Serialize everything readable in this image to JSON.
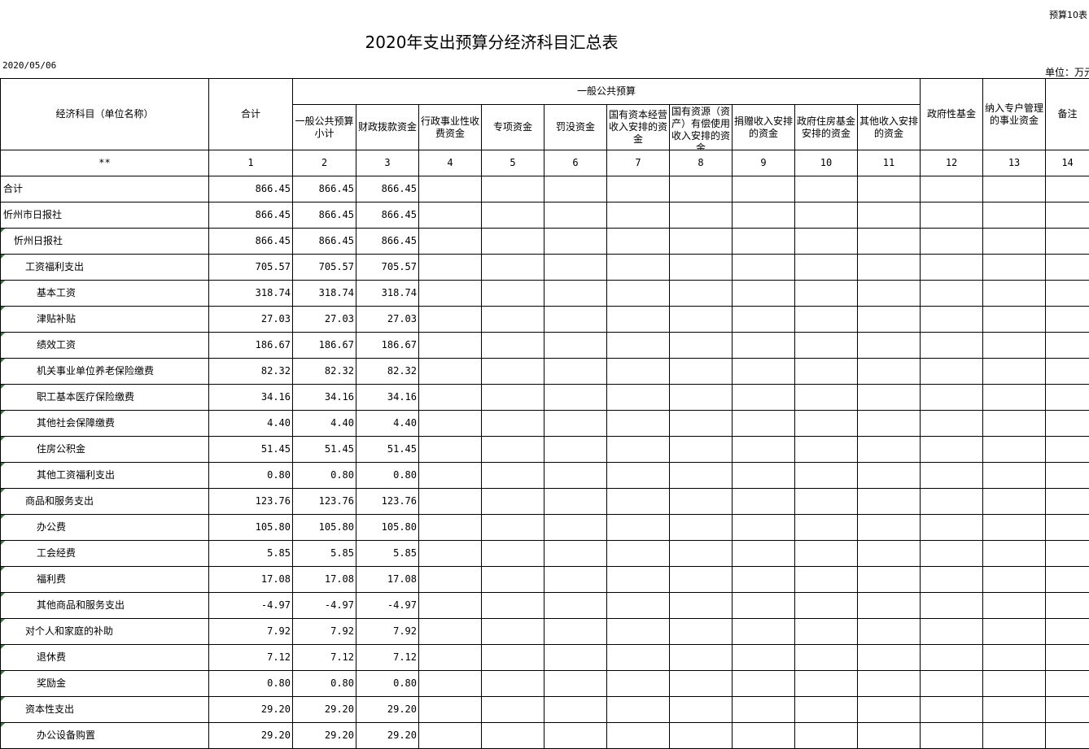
{
  "form_no": "预算10表",
  "title": "2020年支出预算分经济科目汇总表",
  "date": "2020/05/06",
  "unit": "单位：万元",
  "colors": {
    "marker": "#1f8a1f",
    "border": "#000000"
  },
  "header": {
    "name": "经济科目（单位名称）",
    "total": "合计",
    "group": "一般公共预算",
    "sub": [
      "一般公共预算小计",
      "财政拨款资金",
      "行政事业性收费资金",
      "专项资金",
      "罚没资金",
      "国有资本经营收入安排的资金",
      "国有资源（资产）有偿使用收入安排的资金",
      "捐赠收入安排的资金",
      "政府住房基金安排的资金",
      "其他收入安排的资金"
    ],
    "fund": "政府性基金",
    "special": "纳入专户管理的事业资金",
    "remark": "备注"
  },
  "numbers": [
    "**",
    "1",
    "2",
    "3",
    "4",
    "5",
    "6",
    "7",
    "8",
    "9",
    "10",
    "11",
    "12",
    "13",
    "14"
  ],
  "rows": [
    {
      "name": "合计",
      "level": 0,
      "values": [
        "866.45",
        "866.45",
        "866.45"
      ]
    },
    {
      "name": "忻州市日报社",
      "level": 0,
      "values": [
        "866.45",
        "866.45",
        "866.45"
      ]
    },
    {
      "name": "忻州日报社",
      "level": 1,
      "values": [
        "866.45",
        "866.45",
        "866.45"
      ]
    },
    {
      "name": "工资福利支出",
      "level": 2,
      "values": [
        "705.57",
        "705.57",
        "705.57"
      ]
    },
    {
      "name": "基本工资",
      "level": 3,
      "values": [
        "318.74",
        "318.74",
        "318.74"
      ]
    },
    {
      "name": "津贴补贴",
      "level": 3,
      "values": [
        "27.03",
        "27.03",
        "27.03"
      ]
    },
    {
      "name": "绩效工资",
      "level": 3,
      "values": [
        "186.67",
        "186.67",
        "186.67"
      ]
    },
    {
      "name": "机关事业单位养老保险缴费",
      "level": 3,
      "values": [
        "82.32",
        "82.32",
        "82.32"
      ]
    },
    {
      "name": "职工基本医疗保险缴费",
      "level": 3,
      "values": [
        "34.16",
        "34.16",
        "34.16"
      ]
    },
    {
      "name": "其他社会保障缴费",
      "level": 3,
      "values": [
        "4.40",
        "4.40",
        "4.40"
      ]
    },
    {
      "name": "住房公积金",
      "level": 3,
      "values": [
        "51.45",
        "51.45",
        "51.45"
      ]
    },
    {
      "name": "其他工资福利支出",
      "level": 3,
      "values": [
        "0.80",
        "0.80",
        "0.80"
      ]
    },
    {
      "name": "商品和服务支出",
      "level": 2,
      "values": [
        "123.76",
        "123.76",
        "123.76"
      ]
    },
    {
      "name": "办公费",
      "level": 3,
      "values": [
        "105.80",
        "105.80",
        "105.80"
      ]
    },
    {
      "name": "工会经费",
      "level": 3,
      "values": [
        "5.85",
        "5.85",
        "5.85"
      ]
    },
    {
      "name": "福利费",
      "level": 3,
      "values": [
        "17.08",
        "17.08",
        "17.08"
      ]
    },
    {
      "name": "其他商品和服务支出",
      "level": 3,
      "values": [
        "-4.97",
        "-4.97",
        "-4.97"
      ]
    },
    {
      "name": "对个人和家庭的补助",
      "level": 2,
      "values": [
        "7.92",
        "7.92",
        "7.92"
      ]
    },
    {
      "name": "退休费",
      "level": 3,
      "values": [
        "7.12",
        "7.12",
        "7.12"
      ]
    },
    {
      "name": "奖励金",
      "level": 3,
      "values": [
        "0.80",
        "0.80",
        "0.80"
      ]
    },
    {
      "name": "资本性支出",
      "level": 2,
      "values": [
        "29.20",
        "29.20",
        "29.20"
      ]
    },
    {
      "name": "办公设备购置",
      "level": 3,
      "values": [
        "29.20",
        "29.20",
        "29.20"
      ]
    }
  ]
}
